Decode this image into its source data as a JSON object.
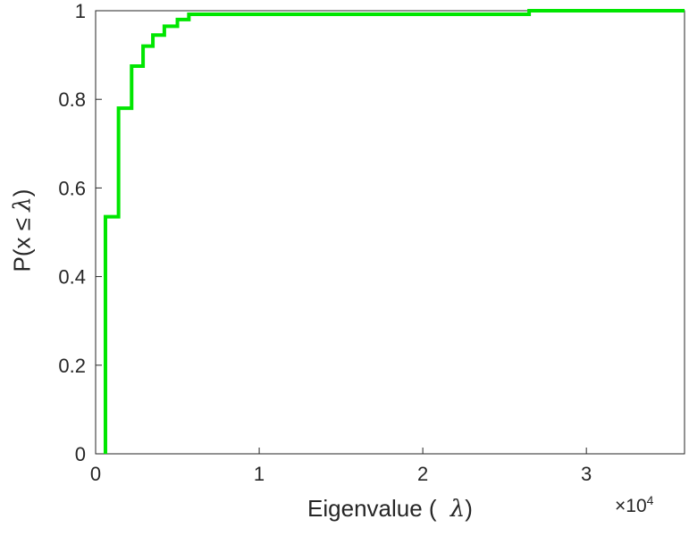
{
  "chart_data": {
    "type": "line",
    "subtype": "ecdf-step",
    "title": "",
    "xlabel": {
      "prefix": "Eigenvalue ( ",
      "lambda": "λ",
      "suffix": ")"
    },
    "ylabel": {
      "prefix": "P(x ≤ ",
      "lambda": "λ",
      "suffix": ")"
    },
    "exponent": {
      "base": "×10",
      "power": "4"
    },
    "x_units_multiplier": 10000,
    "xlim": [
      0,
      3.6
    ],
    "ylim": [
      0,
      1
    ],
    "xticks": [
      0,
      1,
      2,
      3
    ],
    "xtick_labels": [
      "0",
      "1",
      "2",
      "3"
    ],
    "yticks": [
      0,
      0.2,
      0.4,
      0.6,
      0.8,
      1
    ],
    "ytick_labels": [
      "0",
      "0.2",
      "0.4",
      "0.6",
      "0.8",
      "1"
    ],
    "grid": false,
    "legend": null,
    "background_color": "#ffffff",
    "axis_color": "#262626",
    "line_color": "#00e600",
    "line_width": 4,
    "steps": [
      {
        "x": 0.06,
        "p": 0.535
      },
      {
        "x": 0.14,
        "p": 0.78
      },
      {
        "x": 0.22,
        "p": 0.875
      },
      {
        "x": 0.29,
        "p": 0.92
      },
      {
        "x": 0.35,
        "p": 0.945
      },
      {
        "x": 0.42,
        "p": 0.965
      },
      {
        "x": 0.5,
        "p": 0.98
      },
      {
        "x": 0.57,
        "p": 0.992
      },
      {
        "x": 2.65,
        "p": 1.0
      }
    ],
    "x_end": 3.6
  }
}
